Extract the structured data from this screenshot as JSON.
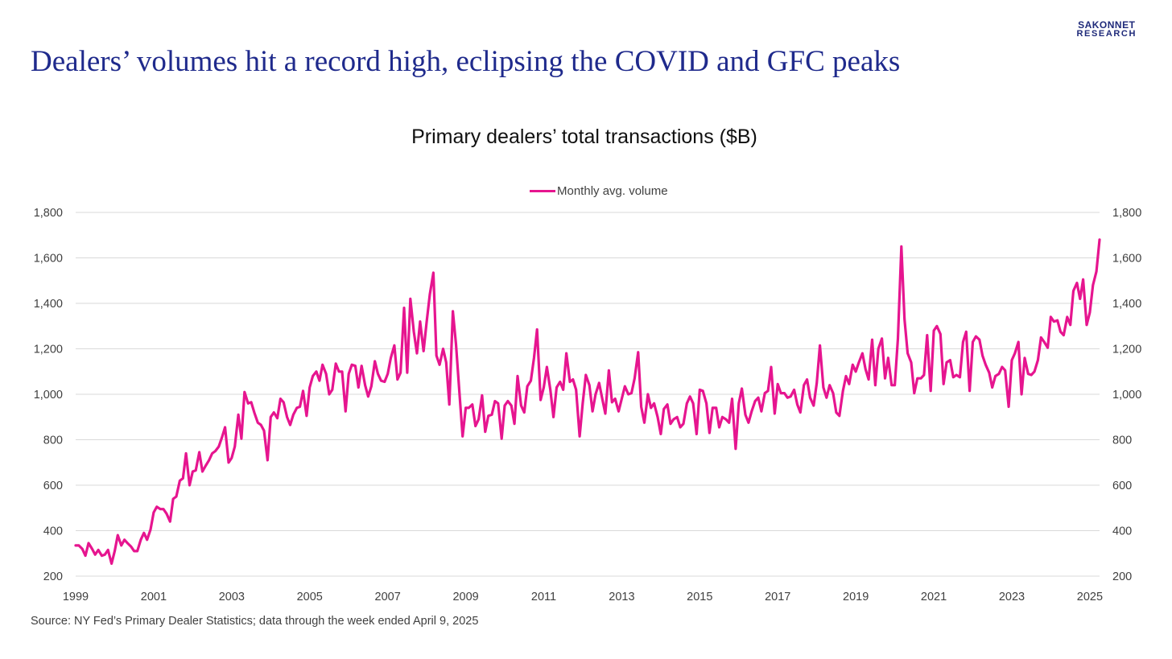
{
  "logo": {
    "line1": "SAKONNET",
    "line2": "RESEARCH"
  },
  "headline": "Dealers’ volumes hit a record high, eclipsing the COVID and GFC peaks",
  "source": "Source: NY Fed’s Primary Dealer Statistics; data through the week ended April 9, 2025",
  "colors": {
    "series": "#e6158f",
    "headline": "#1f2a8c",
    "grid": "#d9d9d9",
    "text": "#404040"
  },
  "chart_data": {
    "type": "line",
    "title": "Primary dealers’ total transactions ($B)",
    "xlabel": "",
    "ylabel": "",
    "ylim": [
      200,
      1800
    ],
    "yticks": [
      200,
      400,
      600,
      800,
      1000,
      1200,
      1400,
      1600,
      1800
    ],
    "ytick_labels": [
      "200",
      "400",
      "600",
      "800",
      "1,000",
      "1,200",
      "1,400",
      "1,600",
      "1,800"
    ],
    "secondary_y_axis": "mirror of primary (right side)",
    "xlim": [
      1999.0,
      2025.25
    ],
    "xticks": [
      1999,
      2001,
      2003,
      2005,
      2007,
      2009,
      2011,
      2013,
      2015,
      2017,
      2019,
      2021,
      2023,
      2025
    ],
    "xtick_labels": [
      "1999",
      "2001",
      "2003",
      "2005",
      "2007",
      "2009",
      "2011",
      "2013",
      "2015",
      "2017",
      "2019",
      "2021",
      "2023",
      "2025"
    ],
    "grid": "horizontal",
    "legend": "top-center",
    "series": [
      {
        "name": "Monthly avg. volume",
        "color": "#e6158f",
        "x": [
          1999.0,
          1999.08,
          1999.17,
          1999.25,
          1999.33,
          1999.42,
          1999.5,
          1999.58,
          1999.67,
          1999.75,
          1999.83,
          1999.92,
          2000.0,
          2000.08,
          2000.17,
          2000.25,
          2000.33,
          2000.42,
          2000.5,
          2000.58,
          2000.67,
          2000.75,
          2000.83,
          2000.92,
          2001.0,
          2001.08,
          2001.17,
          2001.25,
          2001.33,
          2001.42,
          2001.5,
          2001.58,
          2001.67,
          2001.75,
          2001.83,
          2001.92,
          2002.0,
          2002.08,
          2002.17,
          2002.25,
          2002.33,
          2002.42,
          2002.5,
          2002.58,
          2002.67,
          2002.75,
          2002.83,
          2002.92,
          2003.0,
          2003.08,
          2003.17,
          2003.25,
          2003.33,
          2003.42,
          2003.5,
          2003.58,
          2003.67,
          2003.75,
          2003.83,
          2003.92,
          2004.0,
          2004.08,
          2004.17,
          2004.25,
          2004.33,
          2004.42,
          2004.5,
          2004.58,
          2004.67,
          2004.75,
          2004.83,
          2004.92,
          2005.0,
          2005.08,
          2005.17,
          2005.25,
          2005.33,
          2005.42,
          2005.5,
          2005.58,
          2005.67,
          2005.75,
          2005.83,
          2005.92,
          2006.0,
          2006.08,
          2006.17,
          2006.25,
          2006.33,
          2006.42,
          2006.5,
          2006.58,
          2006.67,
          2006.75,
          2006.83,
          2006.92,
          2007.0,
          2007.08,
          2007.17,
          2007.25,
          2007.33,
          2007.42,
          2007.5,
          2007.58,
          2007.67,
          2007.75,
          2007.83,
          2007.92,
          2008.0,
          2008.08,
          2008.17,
          2008.25,
          2008.33,
          2008.42,
          2008.5,
          2008.58,
          2008.67,
          2008.75,
          2008.83,
          2008.92,
          2009.0,
          2009.08,
          2009.17,
          2009.25,
          2009.33,
          2009.42,
          2009.5,
          2009.58,
          2009.67,
          2009.75,
          2009.83,
          2009.92,
          2010.0,
          2010.08,
          2010.17,
          2010.25,
          2010.33,
          2010.42,
          2010.5,
          2010.58,
          2010.67,
          2010.75,
          2010.83,
          2010.92,
          2011.0,
          2011.08,
          2011.17,
          2011.25,
          2011.33,
          2011.42,
          2011.5,
          2011.58,
          2011.67,
          2011.75,
          2011.83,
          2011.92,
          2012.0,
          2012.08,
          2012.17,
          2012.25,
          2012.33,
          2012.42,
          2012.5,
          2012.58,
          2012.67,
          2012.75,
          2012.83,
          2012.92,
          2013.0,
          2013.08,
          2013.17,
          2013.25,
          2013.33,
          2013.42,
          2013.5,
          2013.58,
          2013.67,
          2013.75,
          2013.83,
          2013.92,
          2014.0,
          2014.08,
          2014.17,
          2014.25,
          2014.33,
          2014.42,
          2014.5,
          2014.58,
          2014.67,
          2014.75,
          2014.83,
          2014.92,
          2015.0,
          2015.08,
          2015.17,
          2015.25,
          2015.33,
          2015.42,
          2015.5,
          2015.58,
          2015.67,
          2015.75,
          2015.83,
          2015.92,
          2016.0,
          2016.08,
          2016.17,
          2016.25,
          2016.33,
          2016.42,
          2016.5,
          2016.58,
          2016.67,
          2016.75,
          2016.83,
          2016.92,
          2017.0,
          2017.08,
          2017.17,
          2017.25,
          2017.33,
          2017.42,
          2017.5,
          2017.58,
          2017.67,
          2017.75,
          2017.83,
          2017.92,
          2018.0,
          2018.08,
          2018.17,
          2018.25,
          2018.33,
          2018.42,
          2018.5,
          2018.58,
          2018.67,
          2018.75,
          2018.83,
          2018.92,
          2019.0,
          2019.08,
          2019.17,
          2019.25,
          2019.33,
          2019.42,
          2019.5,
          2019.58,
          2019.67,
          2019.75,
          2019.83,
          2019.92,
          2020.0,
          2020.08,
          2020.17,
          2020.25,
          2020.33,
          2020.42,
          2020.5,
          2020.58,
          2020.67,
          2020.75,
          2020.83,
          2020.92,
          2021.0,
          2021.08,
          2021.17,
          2021.25,
          2021.33,
          2021.42,
          2021.5,
          2021.58,
          2021.67,
          2021.75,
          2021.83,
          2021.92,
          2022.0,
          2022.08,
          2022.17,
          2022.25,
          2022.33,
          2022.42,
          2022.5,
          2022.58,
          2022.67,
          2022.75,
          2022.83,
          2022.92,
          2023.0,
          2023.08,
          2023.17,
          2023.25,
          2023.33,
          2023.42,
          2023.5,
          2023.58,
          2023.67,
          2023.75,
          2023.83,
          2023.92,
          2024.0,
          2024.08,
          2024.17,
          2024.25,
          2024.33,
          2024.42,
          2024.5,
          2024.58,
          2024.67,
          2024.75,
          2024.83,
          2024.92,
          2025.0,
          2025.08,
          2025.17,
          2025.25
        ],
        "values": [
          335,
          335,
          320,
          290,
          345,
          320,
          295,
          315,
          290,
          295,
          315,
          255,
          310,
          380,
          335,
          360,
          345,
          330,
          310,
          310,
          360,
          390,
          360,
          405,
          480,
          505,
          495,
          495,
          475,
          440,
          540,
          550,
          620,
          630,
          740,
          600,
          660,
          665,
          745,
          660,
          685,
          710,
          740,
          750,
          770,
          810,
          855,
          700,
          720,
          770,
          910,
          805,
          1010,
          960,
          965,
          920,
          875,
          865,
          840,
          710,
          900,
          920,
          895,
          980,
          965,
          900,
          865,
          910,
          940,
          945,
          1015,
          905,
          1030,
          1080,
          1100,
          1060,
          1130,
          1090,
          1000,
          1020,
          1135,
          1100,
          1100,
          925,
          1090,
          1130,
          1125,
          1030,
          1125,
          1040,
          990,
          1035,
          1145,
          1090,
          1060,
          1055,
          1090,
          1160,
          1215,
          1065,
          1095,
          1380,
          1095,
          1420,
          1275,
          1180,
          1320,
          1190,
          1320,
          1440,
          1535,
          1170,
          1130,
          1200,
          1140,
          955,
          1365,
          1220,
          1030,
          815,
          940,
          940,
          955,
          860,
          890,
          995,
          835,
          905,
          910,
          970,
          960,
          805,
          950,
          970,
          950,
          870,
          1080,
          950,
          920,
          1035,
          1060,
          1160,
          1285,
          975,
          1030,
          1120,
          1020,
          900,
          1030,
          1055,
          1020,
          1180,
          1055,
          1065,
          1020,
          815,
          960,
          1085,
          1040,
          925,
          1000,
          1050,
          980,
          915,
          1105,
          965,
          980,
          925,
          980,
          1035,
          1000,
          1005,
          1070,
          1185,
          945,
          875,
          1000,
          940,
          960,
          900,
          825,
          935,
          955,
          870,
          890,
          900,
          855,
          870,
          960,
          990,
          960,
          825,
          1020,
          1015,
          960,
          830,
          940,
          940,
          855,
          900,
          890,
          875,
          980,
          760,
          960,
          1025,
          910,
          875,
          925,
          970,
          985,
          925,
          1005,
          1015,
          1120,
          915,
          1045,
          1005,
          1005,
          985,
          990,
          1020,
          955,
          920,
          1040,
          1065,
          985,
          950,
          1050,
          1215,
          1030,
          985,
          1040,
          1005,
          920,
          905,
          1015,
          1080,
          1045,
          1130,
          1100,
          1140,
          1180,
          1110,
          1065,
          1240,
          1040,
          1200,
          1245,
          1070,
          1160,
          1040,
          1040,
          1245,
          1650,
          1330,
          1180,
          1140,
          1005,
          1070,
          1070,
          1085,
          1260,
          1015,
          1280,
          1300,
          1265,
          1045,
          1140,
          1150,
          1075,
          1085,
          1075,
          1230,
          1275,
          1015,
          1230,
          1255,
          1240,
          1170,
          1130,
          1095,
          1030,
          1080,
          1090,
          1120,
          1105,
          945,
          1150,
          1180,
          1230,
          1000,
          1160,
          1090,
          1085,
          1100,
          1150,
          1250,
          1230,
          1205,
          1340,
          1320,
          1325,
          1275,
          1260,
          1340,
          1305,
          1455,
          1490,
          1420,
          1505,
          1305,
          1360,
          1480,
          1540,
          1680
        ]
      }
    ]
  }
}
